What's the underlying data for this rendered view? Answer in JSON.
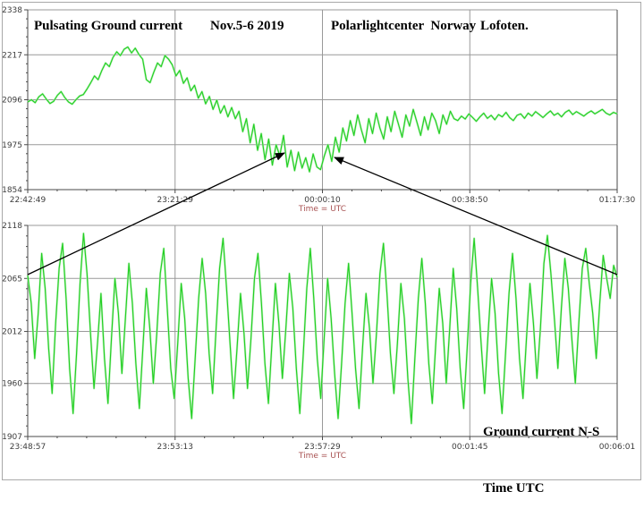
{
  "colors": {
    "trace": "#23cf23",
    "trace_glow": "#b4efb4",
    "grid": "#999999",
    "axis": "#4a4a4a",
    "tick_label": "#3c3c3c",
    "utc_label": "#a85252",
    "title": "#000000",
    "arrow": "#000000",
    "background": "#ffffff"
  },
  "chart_data": [
    {
      "type": "line",
      "id": "overview",
      "titles": [
        "Pulsating Ground current",
        "Nov.5-6 2019",
        "Polarlightcenter  Norway",
        "Lofoten."
      ],
      "ylim": [
        1854,
        2338
      ],
      "yticks": [
        2338,
        2217,
        2096,
        1975,
        1854
      ],
      "xtick_labels": [
        "22:42:49",
        "23:21:29",
        "00:00:10",
        "00:38:50",
        "01:17:30"
      ],
      "time_label": "Time = UTC",
      "time_label_tick_index": 2,
      "grid": true,
      "legend": null,
      "series": [
        {
          "name": "ground-current-overview",
          "values": [
            2090,
            2096,
            2088,
            2104,
            2112,
            2098,
            2086,
            2092,
            2108,
            2118,
            2102,
            2090,
            2084,
            2096,
            2106,
            2110,
            2125,
            2142,
            2160,
            2150,
            2175,
            2195,
            2185,
            2210,
            2225,
            2215,
            2232,
            2238,
            2222,
            2235,
            2218,
            2205,
            2150,
            2142,
            2170,
            2195,
            2185,
            2215,
            2205,
            2190,
            2160,
            2175,
            2140,
            2155,
            2120,
            2135,
            2100,
            2118,
            2085,
            2105,
            2070,
            2095,
            2060,
            2080,
            2050,
            2075,
            2045,
            2065,
            2010,
            2045,
            1980,
            2030,
            1960,
            2005,
            1935,
            1990,
            1920,
            1975,
            1945,
            2000,
            1915,
            1960,
            1905,
            1955,
            1912,
            1940,
            1902,
            1950,
            1915,
            1908,
            1945,
            1975,
            1930,
            1995,
            1955,
            2020,
            1985,
            2040,
            2000,
            2055,
            2015,
            1980,
            2045,
            2005,
            2060,
            2020,
            1990,
            2050,
            2010,
            2065,
            2030,
            1995,
            2055,
            2025,
            2070,
            2035,
            2000,
            2050,
            2015,
            2060,
            2040,
            2005,
            2055,
            2030,
            2065,
            2045,
            2040,
            2052,
            2044,
            2058,
            2048,
            2038,
            2050,
            2060,
            2046,
            2054,
            2042,
            2056,
            2050,
            2062,
            2048,
            2040,
            2054,
            2058,
            2046,
            2060,
            2052,
            2064,
            2056,
            2048,
            2058,
            2066,
            2054,
            2060,
            2050,
            2062,
            2068,
            2056,
            2064,
            2058,
            2052,
            2060,
            2066,
            2058,
            2064,
            2070,
            2060,
            2055,
            2062,
            2058
          ]
        }
      ]
    },
    {
      "type": "line",
      "id": "detail",
      "annotation": [
        "Ground current N-S",
        "Time UTC"
      ],
      "ylim": [
        1907,
        2118
      ],
      "yticks": [
        2118,
        2065,
        2012,
        1960,
        1907
      ],
      "xtick_labels": [
        "23:48:57",
        "23:53:13",
        "23:57:29",
        "00:01:45",
        "00:06:01"
      ],
      "time_label": "Time = UTC",
      "time_label_tick_index": 2,
      "grid": true,
      "legend": null,
      "series": [
        {
          "name": "ground-current-detail",
          "values": [
            2068,
            2040,
            1985,
            2030,
            2090,
            2055,
            1995,
            1950,
            2020,
            2075,
            2100,
            2045,
            1975,
            1930,
            1990,
            2060,
            2110,
            2070,
            2010,
            1955,
            2000,
            2050,
            1985,
            1940,
            2005,
            2065,
            2030,
            1970,
            2025,
            2080,
            2040,
            1980,
            1935,
            1995,
            2055,
            2015,
            1960,
            2010,
            2070,
            2095,
            2035,
            1975,
            1945,
            2000,
            2060,
            2025,
            1965,
            1925,
            1985,
            2045,
            2085,
            2050,
            1990,
            1950,
            2015,
            2075,
            2105,
            2055,
            2000,
            1945,
            1995,
            2050,
            2010,
            1955,
            2005,
            2065,
            2090,
            2040,
            1980,
            1940,
            2000,
            2060,
            2020,
            1965,
            2015,
            2070,
            2035,
            1975,
            1930,
            1990,
            2055,
            2095,
            2045,
            1985,
            1945,
            2005,
            2065,
            2025,
            1970,
            1925,
            1980,
            2040,
            2080,
            2030,
            1975,
            1935,
            1995,
            2050,
            2015,
            1960,
            2010,
            2070,
            2100,
            2050,
            1990,
            1950,
            2000,
            2060,
            2025,
            1965,
            1920,
            1985,
            2045,
            2085,
            2040,
            1980,
            1940,
            2000,
            2055,
            2020,
            1960,
            2015,
            2075,
            2035,
            1975,
            1935,
            1995,
            2060,
            2105,
            2055,
            2000,
            1950,
            2010,
            2065,
            2030,
            1970,
            1930,
            1990,
            2050,
            2090,
            2045,
            1985,
            1945,
            2005,
            2060,
            2020,
            1965,
            2015,
            2080,
            2108,
            2070,
            2025,
            1975,
            2035,
            2085,
            2055,
            2005,
            1960,
            2020,
            2075,
            2095,
            2060,
            2030,
            1985,
            2040,
            2088,
            2065,
            2045,
            2078,
            2066
          ]
        }
      ]
    }
  ]
}
